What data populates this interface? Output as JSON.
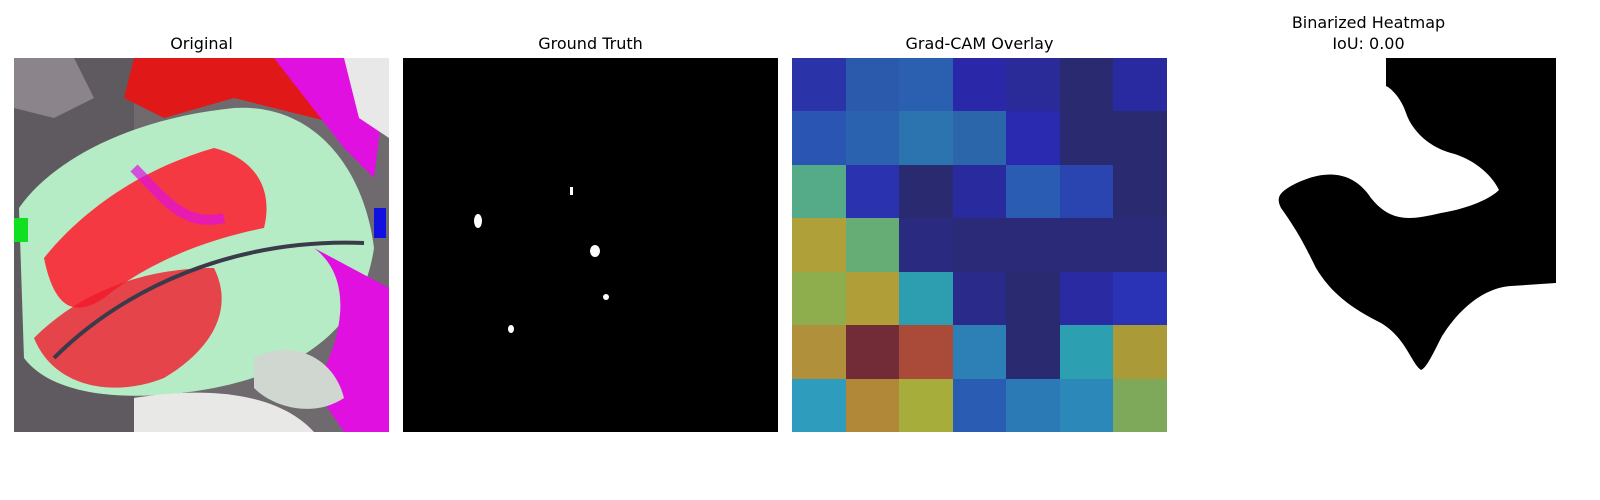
{
  "panels": [
    {
      "title": "Original"
    },
    {
      "title": "Ground Truth"
    },
    {
      "title": "Grad-CAM Overlay"
    },
    {
      "title_line1": "Binarized Heatmap",
      "title_line2": "IoU: 0.00"
    }
  ],
  "gradcam_colors": [
    [
      "#2a34a8",
      "#2b5aad",
      "#2b60b0",
      "#2a28a8",
      "#2a2a98",
      "#2a2a70",
      "#2a2aa0"
    ],
    [
      "#2b55b3",
      "#2b62b0",
      "#2b74b0",
      "#2b66aa",
      "#2a2ab0",
      "#2a2a70",
      "#2a2a70"
    ],
    [
      "#55aa88",
      "#2a32b0",
      "#2a2a70",
      "#2a2a9f",
      "#2b5cb3",
      "#2a45b0",
      "#2a2a70"
    ],
    [
      "#b0a03a",
      "#66ac75",
      "#2a2a80",
      "#2a2a78",
      "#2a2a78",
      "#2a2a78",
      "#2a2a78"
    ],
    [
      "#8ead4d",
      "#b09e38",
      "#2c9eb0",
      "#2a2a8a",
      "#2a2a70",
      "#2a2aa3",
      "#2a32b5"
    ],
    [
      "#b0903a",
      "#722c38",
      "#aa4a38",
      "#2c80b5",
      "#2a2a70",
      "#2ca0b0",
      "#aa9a38"
    ],
    [
      "#2d9cbd",
      "#b08838",
      "#a6ad3a",
      "#2b5cb3",
      "#2b7ab5",
      "#2c88b8",
      "#7ea85a"
    ]
  ]
}
